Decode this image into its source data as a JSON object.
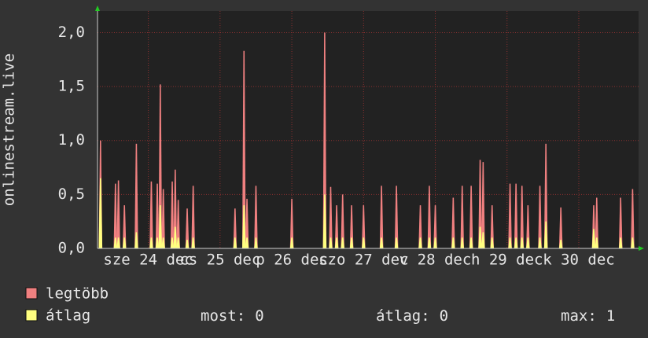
{
  "chart_data": {
    "type": "area",
    "y_label": "onlinestream.live",
    "ylim": [
      0,
      2.2
    ],
    "yticks": [
      {
        "value": 0,
        "label": "0,0"
      },
      {
        "value": 0.5,
        "label": "0,5"
      },
      {
        "value": 1,
        "label": "1,0"
      },
      {
        "value": 1.5,
        "label": "1,5"
      },
      {
        "value": 2,
        "label": "2,0"
      }
    ],
    "xlim": [
      0,
      181
    ],
    "xticks": [
      {
        "value": 17,
        "label": "sze 24 dec"
      },
      {
        "value": 41,
        "label": "cs 25 dec"
      },
      {
        "value": 65,
        "label": "p 26 dec"
      },
      {
        "value": 89,
        "label": "szo 27 dec"
      },
      {
        "value": 113,
        "label": "v 28 dec"
      },
      {
        "value": 137,
        "label": "h 29 dec"
      },
      {
        "value": 161,
        "label": "k 30 dec"
      }
    ],
    "grid": true,
    "x": [
      1,
      6,
      7,
      9,
      13,
      18,
      20,
      21,
      22,
      25,
      26,
      27,
      30,
      32,
      46,
      49,
      50,
      53,
      65,
      76,
      78,
      80,
      82,
      85,
      89,
      95,
      100,
      108,
      111,
      113,
      119,
      122,
      125,
      128,
      129,
      132,
      138,
      140,
      142,
      144,
      148,
      150,
      155,
      166,
      167,
      175,
      179
    ],
    "series": [
      {
        "name": "legtöbb",
        "color": "#f08080",
        "values": [
          1.0,
          0.6,
          0.63,
          0.4,
          0.97,
          0.62,
          0.6,
          1.52,
          0.55,
          0.62,
          0.73,
          0.45,
          0.37,
          0.58,
          0.37,
          1.83,
          0.46,
          0.58,
          0.46,
          2.0,
          0.57,
          0.4,
          0.5,
          0.4,
          0.4,
          0.58,
          0.58,
          0.4,
          0.58,
          0.4,
          0.47,
          0.58,
          0.58,
          0.82,
          0.8,
          0.4,
          0.6,
          0.6,
          0.58,
          0.4,
          0.58,
          0.97,
          0.38,
          0.4,
          0.47,
          0.47,
          0.55
        ]
      },
      {
        "name": "átlag",
        "color": "#ffff80",
        "values": [
          0.65,
          0.1,
          0.1,
          0.1,
          0.15,
          0.1,
          0.1,
          0.4,
          0.1,
          0.1,
          0.2,
          0.1,
          0.08,
          0.1,
          0.1,
          0.4,
          0.1,
          0.1,
          0.1,
          0.5,
          0.1,
          0.1,
          0.1,
          0.1,
          0.1,
          0.1,
          0.1,
          0.1,
          0.1,
          0.1,
          0.1,
          0.1,
          0.1,
          0.2,
          0.15,
          0.1,
          0.1,
          0.1,
          0.1,
          0.1,
          0.1,
          0.25,
          0.08,
          0.18,
          0.1,
          0.1,
          0.1
        ]
      }
    ],
    "stats": [
      {
        "label": "most:",
        "value": 0
      },
      {
        "label": "átlag:",
        "value": 0
      },
      {
        "label": "max:",
        "value": 1
      }
    ]
  }
}
